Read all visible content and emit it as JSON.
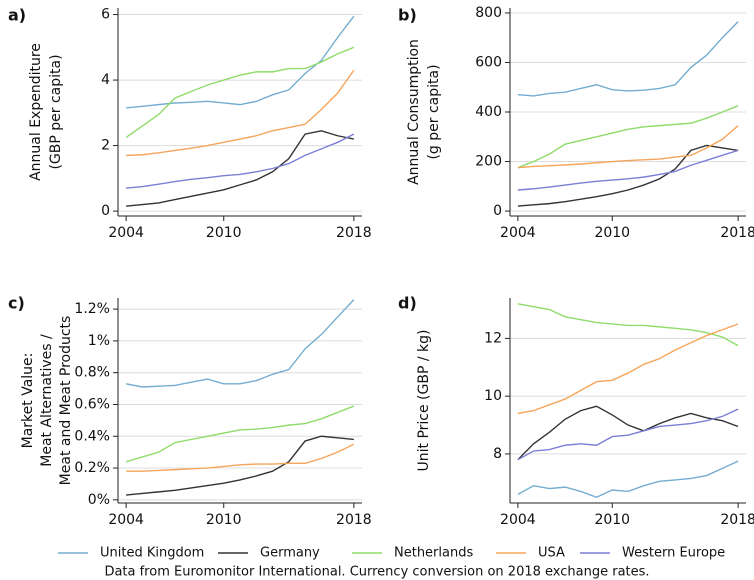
{
  "chart_data": [
    {
      "type": "line",
      "panel_label": "a)",
      "ylabel": [
        "Annual Expenditure",
        "(GBP per capita)"
      ],
      "x": [
        2004,
        2005,
        2006,
        2007,
        2008,
        2009,
        2010,
        2011,
        2012,
        2013,
        2014,
        2015,
        2016,
        2017,
        2018
      ],
      "xlim": [
        2003.5,
        2018.5
      ],
      "xticks": [
        2004,
        2010,
        2018
      ],
      "ylim": [
        -0.15,
        6.2
      ],
      "yticks": [
        0,
        2,
        4,
        6
      ],
      "grid": true,
      "series": [
        {
          "color": "#74add1",
          "values": [
            3.15,
            3.2,
            3.25,
            3.3,
            3.32,
            3.35,
            3.3,
            3.25,
            3.35,
            3.55,
            3.7,
            4.2,
            4.6,
            5.3,
            5.95
          ]
        },
        {
          "color": "#333333",
          "values": [
            0.15,
            0.2,
            0.25,
            0.35,
            0.45,
            0.55,
            0.65,
            0.8,
            0.95,
            1.2,
            1.6,
            2.35,
            2.45,
            2.3,
            2.2
          ]
        },
        {
          "color": "#8fdc6a",
          "values": [
            2.25,
            2.6,
            2.95,
            3.45,
            3.65,
            3.85,
            4.0,
            4.15,
            4.25,
            4.25,
            4.35,
            4.35,
            4.55,
            4.8,
            5.0
          ]
        },
        {
          "color": "#f5a55a",
          "values": [
            1.7,
            1.72,
            1.78,
            1.85,
            1.92,
            2.0,
            2.1,
            2.2,
            2.3,
            2.45,
            2.55,
            2.65,
            3.1,
            3.6,
            4.3
          ]
        },
        {
          "color": "#7b7fd6",
          "values": [
            0.7,
            0.75,
            0.82,
            0.9,
            0.97,
            1.02,
            1.08,
            1.12,
            1.2,
            1.3,
            1.45,
            1.7,
            1.9,
            2.1,
            2.35
          ]
        }
      ]
    },
    {
      "type": "line",
      "panel_label": "b)",
      "ylabel": [
        "Annual Consumption",
        "(g per capita)"
      ],
      "x": [
        2004,
        2005,
        2006,
        2007,
        2008,
        2009,
        2010,
        2011,
        2012,
        2013,
        2014,
        2015,
        2016,
        2017,
        2018
      ],
      "xlim": [
        2003.5,
        2018.5
      ],
      "xticks": [
        2004,
        2010,
        2018
      ],
      "ylim": [
        -20,
        820
      ],
      "yticks": [
        0,
        200,
        400,
        600,
        800
      ],
      "grid": true,
      "series": [
        {
          "color": "#74add1",
          "values": [
            470,
            465,
            475,
            480,
            495,
            510,
            490,
            485,
            488,
            495,
            510,
            580,
            630,
            700,
            765
          ]
        },
        {
          "color": "#333333",
          "values": [
            20,
            25,
            30,
            38,
            48,
            58,
            70,
            85,
            105,
            130,
            170,
            245,
            265,
            255,
            245
          ]
        },
        {
          "color": "#8fdc6a",
          "values": [
            175,
            200,
            230,
            270,
            285,
            300,
            315,
            330,
            340,
            345,
            350,
            355,
            375,
            400,
            425
          ]
        },
        {
          "color": "#f5a55a",
          "values": [
            175,
            180,
            183,
            186,
            190,
            195,
            200,
            204,
            207,
            210,
            218,
            225,
            255,
            290,
            345
          ]
        },
        {
          "color": "#7b7fd6",
          "values": [
            85,
            90,
            97,
            105,
            113,
            120,
            125,
            130,
            137,
            148,
            160,
            185,
            205,
            225,
            245
          ]
        }
      ]
    },
    {
      "type": "line",
      "panel_label": "c)",
      "ylabel": [
        "Market Value:",
        "Meat Alternatives /",
        "Meat and Meat Products"
      ],
      "x": [
        2004,
        2005,
        2006,
        2007,
        2008,
        2009,
        2010,
        2011,
        2012,
        2013,
        2014,
        2015,
        2016,
        2017,
        2018
      ],
      "xlim": [
        2003.5,
        2018.5
      ],
      "xticks": [
        2004,
        2010,
        2018
      ],
      "ylim": [
        -0.02,
        1.27
      ],
      "yticks": [
        {
          "value": 0,
          "label": "0%"
        },
        {
          "value": 0.2,
          "label": "0.2%"
        },
        {
          "value": 0.4,
          "label": "0.4%"
        },
        {
          "value": 0.6,
          "label": "0.6%"
        },
        {
          "value": 0.8,
          "label": "0.8%"
        },
        {
          "value": 1,
          "label": "1%"
        },
        {
          "value": 1.2,
          "label": "1.2%"
        }
      ],
      "grid": true,
      "series": [
        {
          "color": "#74add1",
          "values": [
            0.73,
            0.71,
            0.715,
            0.72,
            0.74,
            0.76,
            0.73,
            0.73,
            0.75,
            0.79,
            0.82,
            0.95,
            1.04,
            1.15,
            1.26
          ]
        },
        {
          "color": "#333333",
          "values": [
            0.03,
            0.04,
            0.05,
            0.06,
            0.075,
            0.09,
            0.105,
            0.125,
            0.15,
            0.18,
            0.24,
            0.37,
            0.4,
            0.39,
            0.38
          ]
        },
        {
          "color": "#8fdc6a",
          "values": [
            0.24,
            0.27,
            0.3,
            0.36,
            0.38,
            0.4,
            0.42,
            0.44,
            0.445,
            0.455,
            0.47,
            0.48,
            0.51,
            0.55,
            0.59
          ]
        },
        {
          "color": "#f5a55a",
          "values": [
            0.18,
            0.18,
            0.185,
            0.19,
            0.195,
            0.2,
            0.21,
            0.22,
            0.225,
            0.225,
            0.23,
            0.23,
            0.26,
            0.3,
            0.35
          ]
        }
      ]
    },
    {
      "type": "line",
      "panel_label": "d)",
      "ylabel": [
        "Unit Price (GBP / kg)"
      ],
      "x": [
        2004,
        2005,
        2006,
        2007,
        2008,
        2009,
        2010,
        2011,
        2012,
        2013,
        2014,
        2015,
        2016,
        2017,
        2018
      ],
      "xlim": [
        2003.5,
        2018.5
      ],
      "xticks": [
        2004,
        2010,
        2018
      ],
      "ylim": [
        6.3,
        13.4
      ],
      "yticks": [
        8,
        10,
        12
      ],
      "grid": true,
      "series": [
        {
          "color": "#74add1",
          "values": [
            6.6,
            6.9,
            6.8,
            6.85,
            6.7,
            6.5,
            6.75,
            6.7,
            6.9,
            7.05,
            7.1,
            7.15,
            7.25,
            7.5,
            7.75
          ]
        },
        {
          "color": "#333333",
          "values": [
            7.8,
            8.35,
            8.75,
            9.2,
            9.5,
            9.65,
            9.35,
            9.0,
            8.8,
            9.05,
            9.25,
            9.4,
            9.25,
            9.15,
            8.95
          ]
        },
        {
          "color": "#8fdc6a",
          "values": [
            13.2,
            13.1,
            13.0,
            12.75,
            12.65,
            12.55,
            12.5,
            12.45,
            12.45,
            12.4,
            12.35,
            12.3,
            12.2,
            12.05,
            11.75
          ]
        },
        {
          "color": "#f5a55a",
          "values": [
            9.4,
            9.5,
            9.7,
            9.9,
            10.2,
            10.5,
            10.55,
            10.8,
            11.1,
            11.3,
            11.6,
            11.85,
            12.1,
            12.3,
            12.5
          ]
        },
        {
          "color": "#7b7fd6",
          "values": [
            7.8,
            8.1,
            8.15,
            8.3,
            8.35,
            8.3,
            8.6,
            8.65,
            8.8,
            8.95,
            9.0,
            9.05,
            9.15,
            9.3,
            9.55
          ]
        }
      ]
    }
  ],
  "legend": [
    {
      "name": "United Kingdom",
      "color": "#74add1"
    },
    {
      "name": "Germany",
      "color": "#333333"
    },
    {
      "name": "Netherlands",
      "color": "#8fdc6a"
    },
    {
      "name": "USA",
      "color": "#f5a55a"
    },
    {
      "name": "Western Europe",
      "color": "#7b7fd6"
    }
  ],
  "caption": "Data from Euromonitor International. Currency conversion on 2018 exchange rates."
}
